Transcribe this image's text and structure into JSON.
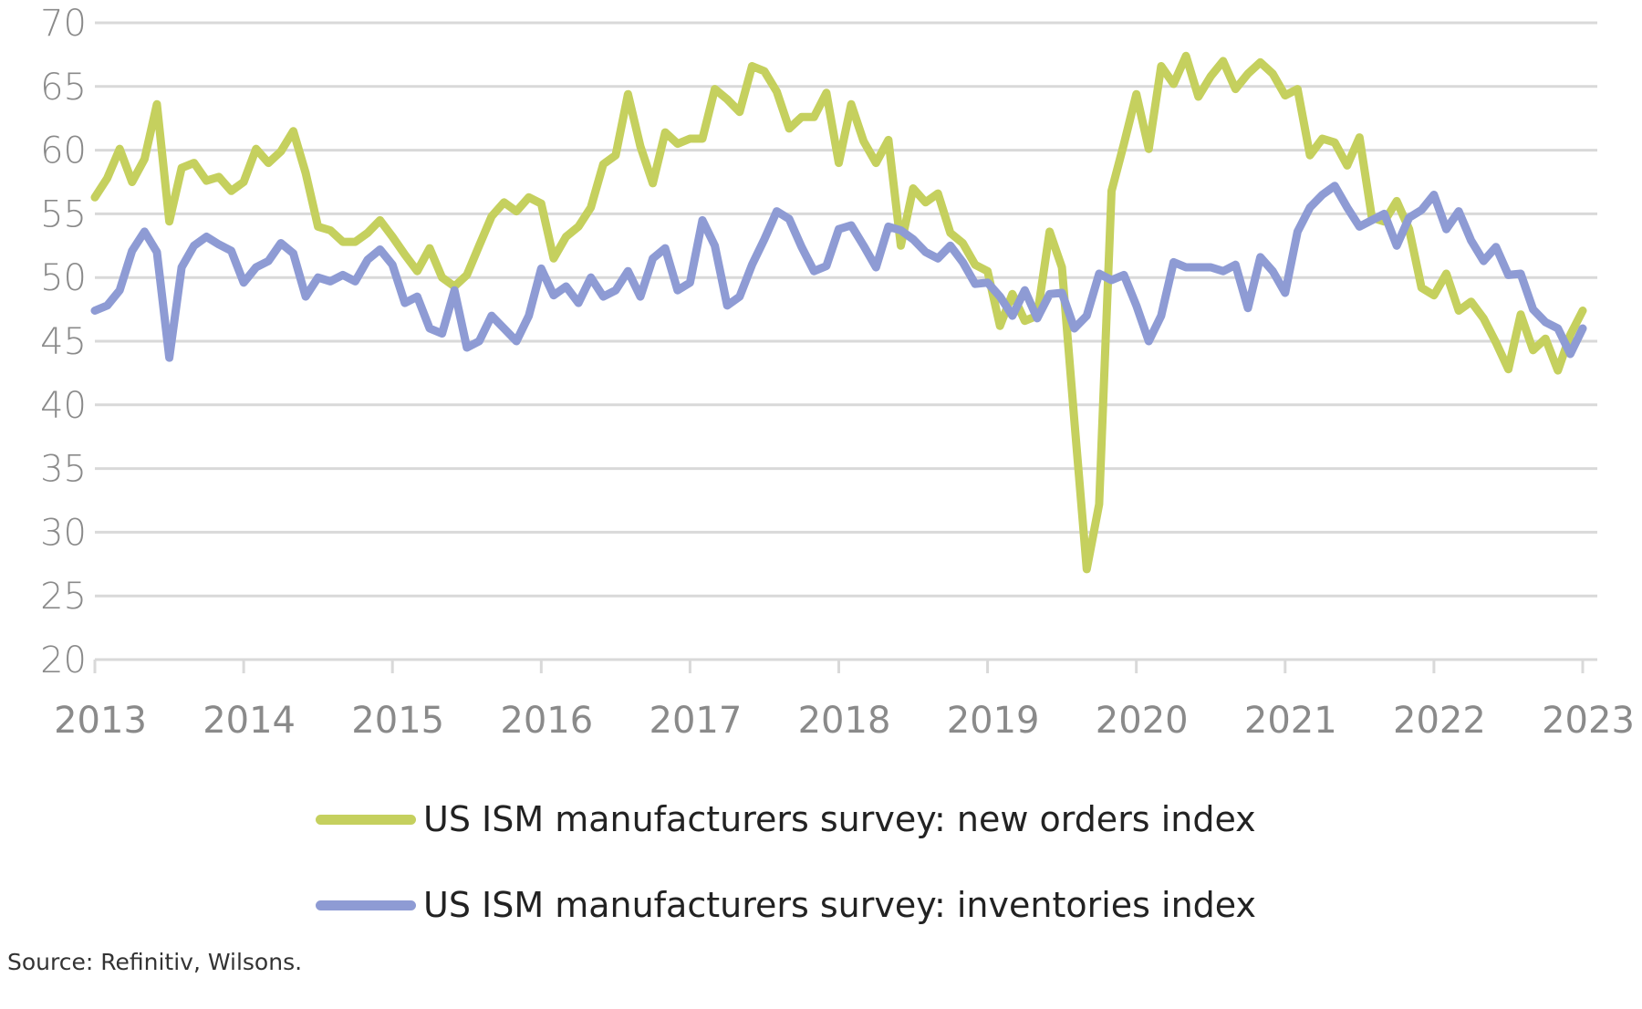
{
  "chart_data": {
    "type": "line",
    "title": "",
    "xlabel": "",
    "ylabel": "",
    "ylim": [
      20,
      70
    ],
    "yticks": [
      "20",
      "25",
      "30",
      "35",
      "40",
      "45",
      "50",
      "55",
      "60",
      "65",
      "70"
    ],
    "xticks": [
      "2013",
      "2014",
      "2015",
      "2016",
      "2017",
      "2018",
      "2019",
      "2020",
      "2021",
      "2022",
      "2023"
    ],
    "x_start": "2013-01",
    "x_frequency": "monthly",
    "grid": true,
    "legend_position": "bottom",
    "source": "Source: Refinitiv, Wilsons.",
    "series": [
      {
        "name": "US ISM manufacturers survey: new orders index",
        "color": "#c5d05e",
        "values": [
          56.3,
          57.8,
          60.1,
          57.5,
          59.3,
          63.6,
          54.4,
          58.6,
          59.0,
          57.6,
          57.9,
          56.8,
          57.5,
          60.1,
          59.0,
          59.9,
          61.5,
          58.2,
          54.0,
          53.7,
          52.8,
          52.8,
          53.5,
          54.5,
          53.2,
          51.8,
          50.5,
          52.3,
          50.0,
          49.3,
          50.2,
          52.5,
          54.8,
          55.9,
          55.2,
          56.3,
          55.8,
          51.5,
          53.2,
          54.0,
          55.5,
          58.9,
          59.6,
          64.4,
          60.3,
          57.4,
          61.4,
          60.5,
          60.9,
          60.9,
          64.8,
          64.0,
          63.0,
          66.6,
          66.2,
          64.6,
          61.7,
          62.6,
          62.6,
          64.5,
          59.0,
          63.6,
          60.7,
          59.0,
          60.8,
          52.5,
          57.0,
          55.9,
          56.6,
          53.5,
          52.7,
          51.0,
          50.5,
          46.2,
          48.7,
          46.6,
          47.0,
          53.6,
          50.8,
          38.8,
          27.1,
          32.2,
          56.8,
          60.5,
          64.4,
          60.1,
          66.6,
          65.2,
          67.4,
          64.2,
          65.8,
          67.0,
          64.8,
          66.0,
          66.9,
          66.0,
          64.3,
          64.8,
          59.6,
          60.9,
          60.6,
          58.8,
          61.0,
          54.7,
          54.4,
          56.0,
          53.8,
          49.2,
          48.6,
          50.3,
          47.4,
          48.1,
          46.8,
          44.9,
          42.8,
          47.1,
          44.3,
          45.2,
          42.7,
          45.5,
          47.4
        ]
      },
      {
        "name": "US ISM manufacturers survey: inventories index",
        "color": "#8e9bd4",
        "values": [
          47.4,
          47.8,
          49.0,
          52.1,
          53.6,
          52.0,
          43.7,
          50.8,
          52.5,
          53.2,
          52.6,
          52.1,
          49.6,
          50.8,
          51.3,
          52.7,
          51.9,
          48.5,
          50.0,
          49.7,
          50.2,
          49.7,
          51.4,
          52.2,
          51.0,
          48.0,
          48.5,
          46.0,
          45.6,
          49.0,
          44.5,
          45.0,
          47.0,
          46.0,
          45.0,
          47.0,
          50.7,
          48.6,
          49.3,
          48.0,
          50.0,
          48.5,
          49.0,
          50.5,
          48.5,
          51.5,
          52.3,
          49.0,
          49.6,
          54.5,
          52.5,
          47.8,
          48.5,
          51.0,
          53.0,
          55.2,
          54.6,
          52.4,
          50.5,
          50.9,
          53.8,
          54.1,
          52.5,
          50.8,
          54.0,
          53.7,
          53.0,
          52.0,
          51.5,
          52.5,
          51.2,
          49.5,
          49.6,
          48.5,
          47.0,
          49.0,
          46.8,
          48.7,
          48.8,
          46.0,
          47.0,
          50.3,
          49.8,
          50.2,
          47.8,
          45.0,
          47.0,
          51.2,
          50.8,
          50.8,
          50.8,
          50.5,
          51.0,
          47.6,
          51.6,
          50.5,
          48.8,
          53.6,
          55.5,
          56.5,
          57.2,
          55.5,
          54.0,
          54.5,
          55.0,
          52.5,
          54.7,
          55.3,
          56.5,
          53.8,
          55.2,
          52.9,
          51.3,
          52.4,
          50.2,
          50.3,
          47.5,
          46.5,
          46.0,
          44.0,
          46.0
        ]
      }
    ]
  }
}
